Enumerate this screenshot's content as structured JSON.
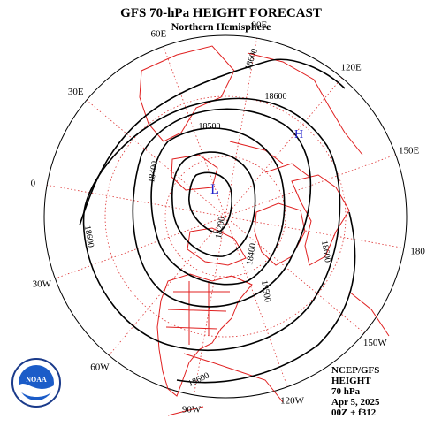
{
  "header": {
    "title": "GFS 70-hPa HEIGHT FORECAST",
    "subtitle": "Northern Hemisphere"
  },
  "longitude_labels": [
    "90E",
    "60E",
    "30E",
    "0",
    "30W",
    "60W",
    "90W",
    "120W",
    "150W",
    "180",
    "150E",
    "120E"
  ],
  "contour_labels": [
    18600,
    18600,
    18500,
    18400,
    18200,
    18400,
    18600,
    18500,
    18600,
    18600
  ],
  "centers": [
    "L",
    "H"
  ],
  "info": [
    "NCEP/GFS",
    "HEIGHT",
    "70 hPa",
    "Apr 5, 2025",
    "00Z + f312"
  ],
  "logo": "NOAA"
}
